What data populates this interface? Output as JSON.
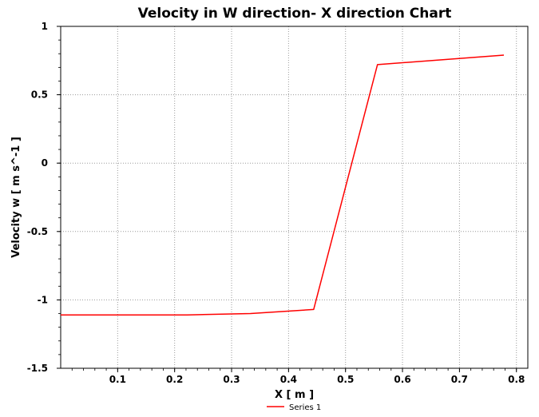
{
  "chart_data": {
    "type": "line",
    "title": "Velocity in W direction- X direction Chart",
    "xlabel": "X [ m ]",
    "ylabel": "Velocity w [ m s^-1 ]",
    "xlim": [
      0,
      0.82
    ],
    "ylim": [
      -1.5,
      1
    ],
    "x_ticks": [
      0.1,
      0.2,
      0.3,
      0.4,
      0.5,
      0.6,
      0.7,
      0.8
    ],
    "x_tick_labels": [
      "0.1",
      "0.2",
      "0.3",
      "0.4",
      "0.5",
      "0.6",
      "0.7",
      "0.8"
    ],
    "y_ticks": [
      1,
      0.5,
      0,
      -0.5,
      -1,
      -1.5
    ],
    "y_tick_labels": [
      "1",
      "0.5",
      "0",
      "-0.5",
      "-1",
      "-1.5"
    ],
    "grid": true,
    "legend_position": "bottom-center",
    "series": [
      {
        "name": "Series 1",
        "color": "#ff0000",
        "x": [
          0.0,
          0.111,
          0.222,
          0.333,
          0.444,
          0.556,
          0.778
        ],
        "y": [
          -1.11,
          -1.11,
          -1.11,
          -1.1,
          -1.07,
          0.72,
          0.79
        ]
      }
    ]
  }
}
